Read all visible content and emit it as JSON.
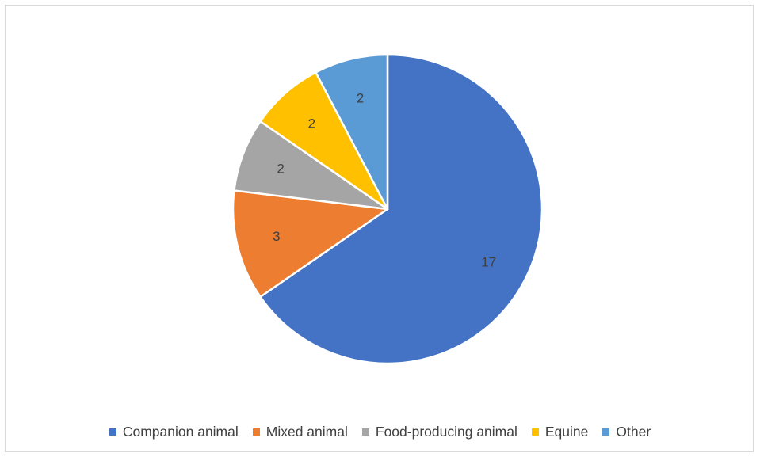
{
  "chart_data": {
    "type": "pie",
    "categories": [
      "Companion animal",
      "Mixed animal",
      "Food-producing animal",
      "Equine",
      "Other"
    ],
    "values": [
      17,
      3,
      2,
      2,
      2
    ],
    "data_labels": [
      "17",
      "3",
      "2",
      "2",
      "2"
    ],
    "colors": [
      "#4472c4",
      "#ed7d31",
      "#a5a5a5",
      "#ffc000",
      "#5b9bd5"
    ],
    "start_angle_deg": 0,
    "direction": "clockwise",
    "legend_position": "bottom",
    "title": ""
  }
}
